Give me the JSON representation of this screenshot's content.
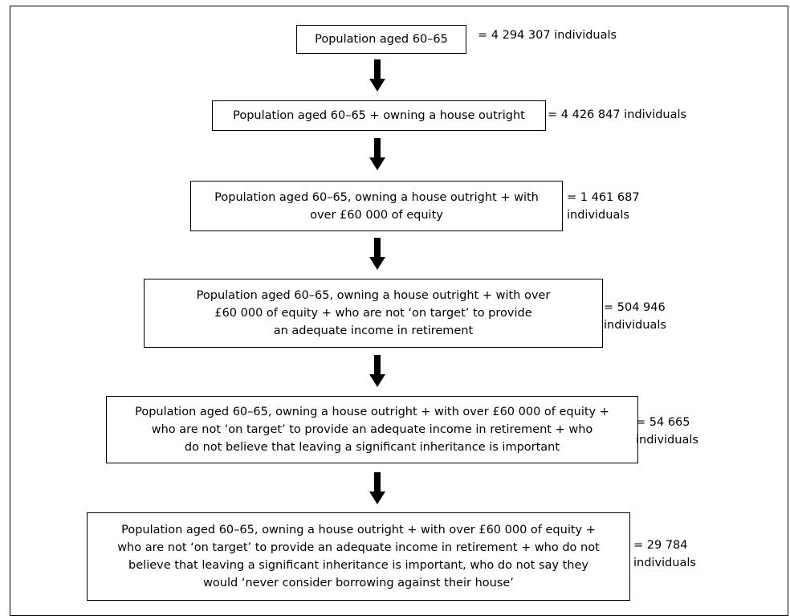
{
  "steps": [
    {
      "label": "Population aged 60–65",
      "count": "= 4 294 307 individuals"
    },
    {
      "label": "Population aged 60–65 + owning a house outright",
      "count": "= 4 426 847 individuals"
    },
    {
      "label": "Population aged 60–65, owning a house outright + with\nover £60 000 of equity",
      "count": "= 1 461 687\nindividuals"
    },
    {
      "label": "Population aged 60–65, owning a house outright + with over\n£60 000 of equity + who are not ‘on target’ to provide\nan adequate income in retirement",
      "count": "= 504 946\nindividuals"
    },
    {
      "label": "Population aged 60–65, owning a house outright + with over £60 000 of equity +\nwho are not ‘on target’ to provide an adequate income in retirement + who\ndo not believe that leaving a significant inheritance is important",
      "count": "= 54 665\nindividuals"
    },
    {
      "label": "Population aged 60–65, owning a house outright + with over £60 000 of equity +\nwho are not ‘on target’ to provide an adequate income in retirement + who do not\nbelieve that leaving a significant inheritance is important, who do not say they\nwould ‘never consider borrowing against their house’",
      "count": "= 29 784\nindividuals"
    }
  ]
}
